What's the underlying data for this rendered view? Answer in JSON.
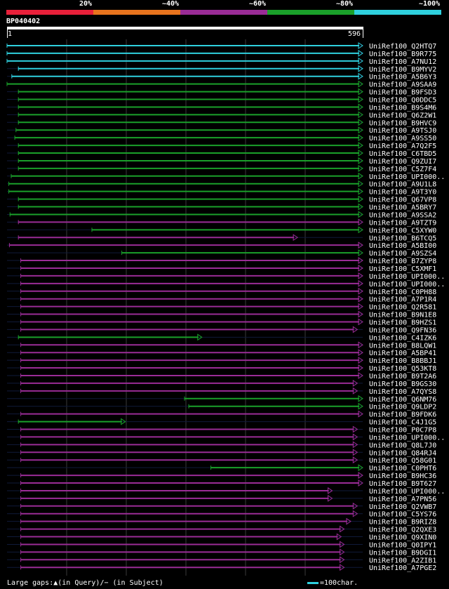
{
  "legend": {
    "items": [
      {
        "label": "20%",
        "color": "#e8203a"
      },
      {
        "label": "~40%",
        "color": "#e8741e"
      },
      {
        "label": "~60%",
        "color": "#9a2c96"
      },
      {
        "label": "~80%",
        "color": "#1aa02a"
      },
      {
        "label": "~100%",
        "color": "#2fd0de"
      }
    ]
  },
  "chart_data": {
    "type": "alignment",
    "query": {
      "name": "BP040402",
      "start": 1,
      "end": 596
    },
    "hits": [
      {
        "id": "UniRef100_Q2HTQ7",
        "identity": "~100%",
        "q_start": 1,
        "q_end": 596
      },
      {
        "id": "UniRef100_B9R775",
        "identity": "~100%",
        "q_start": 1,
        "q_end": 596
      },
      {
        "id": "UniRef100_A7NU12",
        "identity": "~100%",
        "q_start": 1,
        "q_end": 596
      },
      {
        "id": "UniRef100_B9MYV2",
        "identity": "~100%",
        "q_start": 20,
        "q_end": 596
      },
      {
        "id": "UniRef100_A5B6Y3",
        "identity": "~100%",
        "q_start": 9,
        "q_end": 596
      },
      {
        "id": "UniRef100_A9SAA9",
        "identity": "~80%",
        "q_start": 1,
        "q_end": 596
      },
      {
        "id": "UniRef100_B9FSD3",
        "identity": "~80%",
        "q_start": 20,
        "q_end": 596
      },
      {
        "id": "UniRef100_Q0DDC5",
        "identity": "~80%",
        "q_start": 20,
        "q_end": 596
      },
      {
        "id": "UniRef100_B9S4M6",
        "identity": "~80%",
        "q_start": 20,
        "q_end": 596
      },
      {
        "id": "UniRef100_Q6Z2W1",
        "identity": "~80%",
        "q_start": 20,
        "q_end": 596
      },
      {
        "id": "UniRef100_B9HVC9",
        "identity": "~80%",
        "q_start": 20,
        "q_end": 596
      },
      {
        "id": "UniRef100_A9TSJ0",
        "identity": "~80%",
        "q_start": 16,
        "q_end": 596
      },
      {
        "id": "UniRef100_A9SS50",
        "identity": "~80%",
        "q_start": 14,
        "q_end": 596
      },
      {
        "id": "UniRef100_A7Q2F5",
        "identity": "~80%",
        "q_start": 20,
        "q_end": 596
      },
      {
        "id": "UniRef100_C6TBD5",
        "identity": "~80%",
        "q_start": 20,
        "q_end": 596
      },
      {
        "id": "UniRef100_Q9ZUI7",
        "identity": "~80%",
        "q_start": 20,
        "q_end": 596
      },
      {
        "id": "UniRef100_C5Z7F4",
        "identity": "~80%",
        "q_start": 20,
        "q_end": 596
      },
      {
        "id": "UniRef100_UPI000..",
        "identity": "~80%",
        "q_start": 8,
        "q_end": 596
      },
      {
        "id": "UniRef100_A9U1L8",
        "identity": "~80%",
        "q_start": 4,
        "q_end": 596
      },
      {
        "id": "UniRef100_A9T3Y0",
        "identity": "~80%",
        "q_start": 4,
        "q_end": 596
      },
      {
        "id": "UniRef100_Q67VP8",
        "identity": "~80%",
        "q_start": 20,
        "q_end": 596
      },
      {
        "id": "UniRef100_A5BRY7",
        "identity": "~80%",
        "q_start": 20,
        "q_end": 596
      },
      {
        "id": "UniRef100_A9SSA2",
        "identity": "~80%",
        "q_start": 6,
        "q_end": 596
      },
      {
        "id": "UniRef100_A9TZT9",
        "identity": "~60%",
        "q_start": 20,
        "q_end": 596
      },
      {
        "id": "UniRef100_C5XYW0",
        "identity": "~80%",
        "q_start": 143,
        "q_end": 596
      },
      {
        "id": "UniRef100_B6TCQ5",
        "identity": "~60%",
        "q_start": 20,
        "q_end": 487
      },
      {
        "id": "UniRef100_A5BI00",
        "identity": "~60%",
        "q_start": 5,
        "q_end": 596
      },
      {
        "id": "UniRef100_A9SZS4",
        "identity": "~80%",
        "q_start": 193,
        "q_end": 596
      },
      {
        "id": "UniRef100_B7ZYP8",
        "identity": "~60%",
        "q_start": 24,
        "q_end": 596
      },
      {
        "id": "UniRef100_C5XMF1",
        "identity": "~60%",
        "q_start": 24,
        "q_end": 596
      },
      {
        "id": "UniRef100_UPI000..",
        "identity": "~60%",
        "q_start": 24,
        "q_end": 596
      },
      {
        "id": "UniRef100_UPI000..",
        "identity": "~60%",
        "q_start": 24,
        "q_end": 596
      },
      {
        "id": "UniRef100_C0PH88",
        "identity": "~60%",
        "q_start": 24,
        "q_end": 596
      },
      {
        "id": "UniRef100_A7P1R4",
        "identity": "~60%",
        "q_start": 24,
        "q_end": 596
      },
      {
        "id": "UniRef100_Q2R581",
        "identity": "~60%",
        "q_start": 24,
        "q_end": 596
      },
      {
        "id": "UniRef100_B9N1E8",
        "identity": "~60%",
        "q_start": 24,
        "q_end": 596
      },
      {
        "id": "UniRef100_B9HZS1",
        "identity": "~60%",
        "q_start": 24,
        "q_end": 596
      },
      {
        "id": "UniRef100_Q9FN36",
        "identity": "~60%",
        "q_start": 24,
        "q_end": 587
      },
      {
        "id": "UniRef100_C4IZK6",
        "identity": "~80%",
        "q_start": 20,
        "q_end": 327
      },
      {
        "id": "UniRef100_B8LQW1",
        "identity": "~60%",
        "q_start": 24,
        "q_end": 596
      },
      {
        "id": "UniRef100_A5BP41",
        "identity": "~60%",
        "q_start": 24,
        "q_end": 596
      },
      {
        "id": "UniRef100_B8BBJ1",
        "identity": "~60%",
        "q_start": 24,
        "q_end": 596
      },
      {
        "id": "UniRef100_Q53KT8",
        "identity": "~60%",
        "q_start": 24,
        "q_end": 596
      },
      {
        "id": "UniRef100_B9T2A6",
        "identity": "~60%",
        "q_start": 24,
        "q_end": 596
      },
      {
        "id": "UniRef100_B9GS30",
        "identity": "~60%",
        "q_start": 24,
        "q_end": 587
      },
      {
        "id": "UniRef100_A7QYS8",
        "identity": "~60%",
        "q_start": 24,
        "q_end": 587
      },
      {
        "id": "UniRef100_Q6NM76",
        "identity": "~80%",
        "q_start": 298,
        "q_end": 596
      },
      {
        "id": "UniRef100_Q9LDP2",
        "identity": "~80%",
        "q_start": 305,
        "q_end": 596
      },
      {
        "id": "UniRef100_B9FDK6",
        "identity": "~60%",
        "q_start": 24,
        "q_end": 596
      },
      {
        "id": "UniRef100_C4J1G5",
        "identity": "~80%",
        "q_start": 20,
        "q_end": 199
      },
      {
        "id": "UniRef100_P0C7P8",
        "identity": "~60%",
        "q_start": 24,
        "q_end": 587
      },
      {
        "id": "UniRef100_UPI000..",
        "identity": "~60%",
        "q_start": 24,
        "q_end": 587
      },
      {
        "id": "UniRef100_Q8L7J0",
        "identity": "~60%",
        "q_start": 24,
        "q_end": 587
      },
      {
        "id": "UniRef100_Q84RJ4",
        "identity": "~60%",
        "q_start": 24,
        "q_end": 587
      },
      {
        "id": "UniRef100_Q58G01",
        "identity": "~60%",
        "q_start": 24,
        "q_end": 587
      },
      {
        "id": "UniRef100_C0PHT6",
        "identity": "~80%",
        "q_start": 342,
        "q_end": 596
      },
      {
        "id": "UniRef100_B9HC36",
        "identity": "~60%",
        "q_start": 24,
        "q_end": 596
      },
      {
        "id": "UniRef100_B9T627",
        "identity": "~60%",
        "q_start": 24,
        "q_end": 596
      },
      {
        "id": "UniRef100_UPI000..",
        "identity": "~60%",
        "q_start": 24,
        "q_end": 545
      },
      {
        "id": "UniRef100_A7PN56",
        "identity": "~60%",
        "q_start": 24,
        "q_end": 545
      },
      {
        "id": "UniRef100_Q2VWB7",
        "identity": "~60%",
        "q_start": 24,
        "q_end": 587
      },
      {
        "id": "UniRef100_C5YS76",
        "identity": "~60%",
        "q_start": 24,
        "q_end": 587
      },
      {
        "id": "UniRef100_B9RIZ8",
        "identity": "~60%",
        "q_start": 24,
        "q_end": 576
      },
      {
        "id": "UniRef100_Q2QXE3",
        "identity": "~60%",
        "q_start": 24,
        "q_end": 565
      },
      {
        "id": "UniRef100_Q9XIN0",
        "identity": "~60%",
        "q_start": 24,
        "q_end": 560
      },
      {
        "id": "UniRef100_Q0IPY1",
        "identity": "~60%",
        "q_start": 24,
        "q_end": 565
      },
      {
        "id": "UniRef100_B9DGI1",
        "identity": "~60%",
        "q_start": 24,
        "q_end": 565
      },
      {
        "id": "UniRef100_A2ZIB1",
        "identity": "~60%",
        "q_start": 24,
        "q_end": 565
      },
      {
        "id": "UniRef100_A7PGE2",
        "identity": "~60%",
        "q_start": 24,
        "q_end": 565
      }
    ]
  },
  "footer": {
    "gaps_legend": "Large gaps:▲(in Query)/− (in Subject)",
    "scale_text": "=100char."
  }
}
